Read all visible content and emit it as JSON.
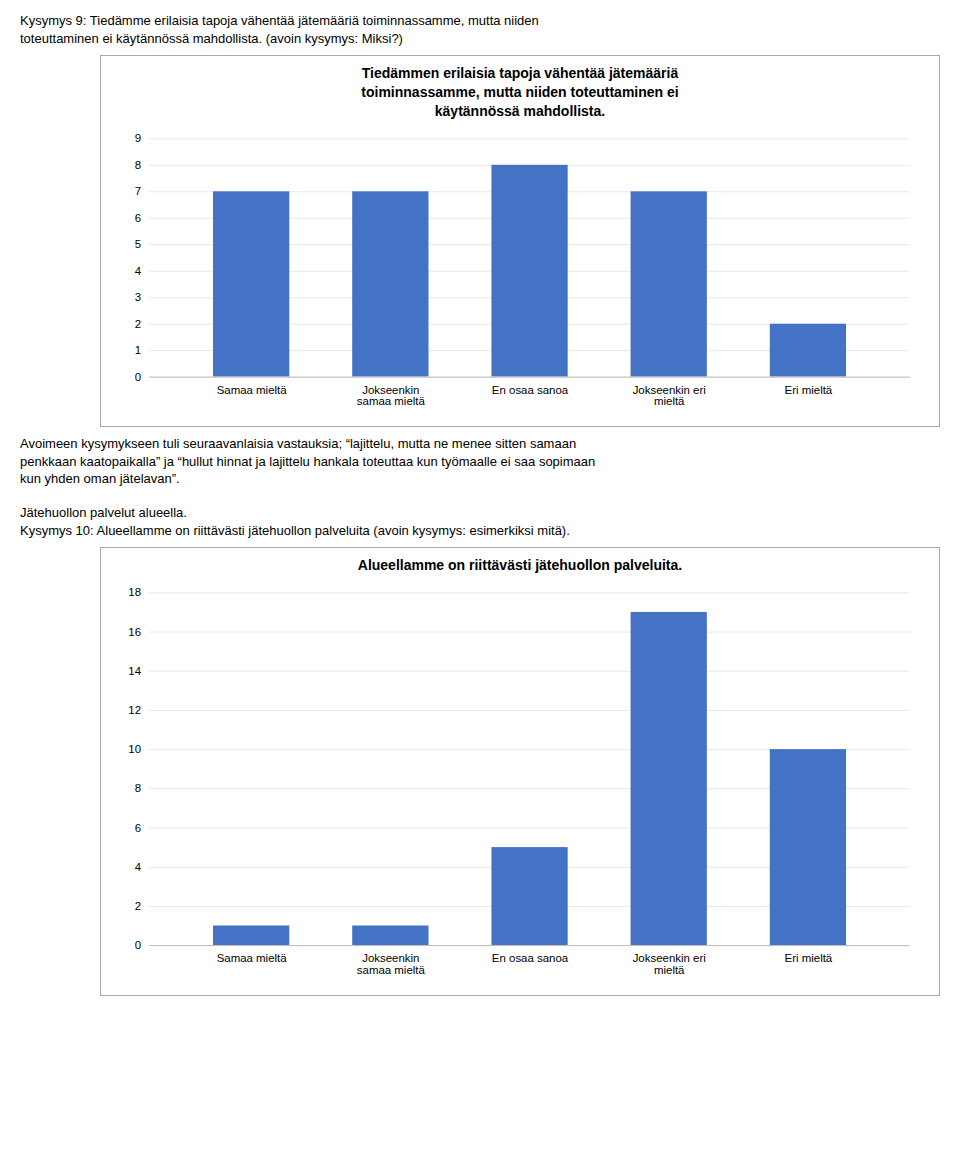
{
  "chart_data": [
    {
      "type": "bar",
      "subtitle": [
        "Kysymys 9: Tiedämme erilaisia tapoja vähentää jätemääriä toiminnassamme, mutta niiden",
        "toteuttaminen ei käytännössä mahdollista. (avoin kysymys: Miksi?)"
      ],
      "title": "Tiedämmen erilaisia tapoja vähentää jätemääriä\ntoiminnassamme, mutta niiden toteuttaminen ei\nkäytännössä mahdollista.",
      "categories": [
        "Samaa mieltä",
        "Jokseenkin\nsamaa mieltä",
        "En osaa sanoa",
        "Jokseenkin eri\nmieltä",
        "Eri mieltä"
      ],
      "values": [
        7,
        7,
        8,
        7,
        2
      ],
      "color": "#4472C4",
      "ylim": [
        0,
        9
      ],
      "yticks": [
        0,
        1,
        2,
        3,
        4,
        5,
        6,
        7,
        8,
        9
      ],
      "grid": true,
      "annotations": [
        "Avoimeen kysymykseen tuli seuraavanlaisia vastauksia; “lajittelu, mutta ne menee sitten samaan",
        "penkkaan kaatopaikalla” ja “hullut hinnat ja lajittelu hankala toteuttaa kun työmaalle ei saa sopimaan",
        "kun yhden oman jätelavan”."
      ]
    },
    {
      "type": "bar",
      "subtitle": [
        "Jätehuollon palvelut alueella.",
        "Kysymys 10: Alueellamme on riittävästi jätehuollon palveluita (avoin kysymys: esimerkiksi mitä)."
      ],
      "title": "Alueellamme on riittävästi jätehuollon palveluita.",
      "categories": [
        "Samaa mieltä",
        "Jokseenkin\nsamaa mieltä",
        "En osaa sanoa",
        "Jokseenkin eri\nmieltä",
        "Eri mieltä"
      ],
      "values": [
        1,
        1,
        5,
        17,
        10
      ],
      "color": "#4472C4",
      "ylim": [
        0,
        18
      ],
      "yticks": [
        0,
        2,
        4,
        6,
        8,
        10,
        12,
        14,
        16,
        18
      ],
      "grid": true
    }
  ]
}
